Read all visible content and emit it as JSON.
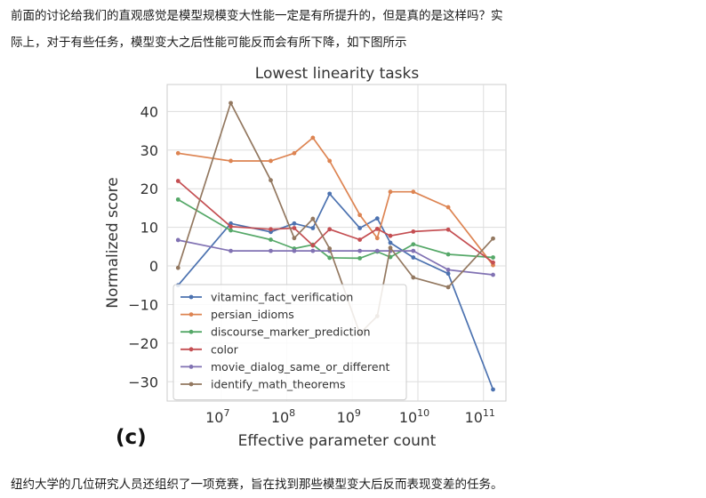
{
  "paragraphs": {
    "intro_line1": "前面的讨论给我们的直观感觉是模型规模变大性能一定是有所提升的，但是真的是这样吗？实",
    "intro_line2": "际上，对于有些任务，模型变大之后性能可能反而会有所下降，如下图所示",
    "after": "纽约大学的几位研究人员还组织了一项竞赛，旨在找到那些模型变大后反而表现变差的任务。"
  },
  "figure": {
    "panel_label": "(c)"
  },
  "chart_data": {
    "type": "line",
    "title": "Lowest linearity tasks",
    "xlabel": "Effective parameter count",
    "ylabel": "Normalized score",
    "xscale": "log",
    "xlim": [
      1500000.0,
      220000000000.0
    ],
    "ylim": [
      -35,
      47
    ],
    "xticks": [
      {
        "value": 10000000.0,
        "base": "10",
        "exp": "7"
      },
      {
        "value": 100000000.0,
        "base": "10",
        "exp": "8"
      },
      {
        "value": 1000000000.0,
        "base": "10",
        "exp": "9"
      },
      {
        "value": 10000000000.0,
        "base": "10",
        "exp": "10"
      },
      {
        "value": 100000000000.0,
        "base": "10",
        "exp": "11"
      }
    ],
    "yticks": [
      40,
      30,
      20,
      10,
      0,
      -10,
      -20,
      -30
    ],
    "ytick_labels": [
      "40",
      "30",
      "20",
      "10",
      "0",
      "−10",
      "−20",
      "−30"
    ],
    "grid": true,
    "legend_position": "lower-left",
    "series": [
      {
        "name": "vitaminc_fact_verification",
        "color": "#4c72b0",
        "points": [
          [
            2200000.0,
            -5
          ],
          [
            14000000.0,
            11
          ],
          [
            57000000.0,
            8.8
          ],
          [
            130000000.0,
            11
          ],
          [
            250000000.0,
            9.8
          ],
          [
            450000000.0,
            18.7
          ],
          [
            1300000000.0,
            9.8
          ],
          [
            2400000000.0,
            12.3
          ],
          [
            3800000000.0,
            6
          ],
          [
            8500000000.0,
            2.2
          ],
          [
            29000000000.0,
            -2
          ],
          [
            140000000000.0,
            -32
          ]
        ]
      },
      {
        "name": "persian_idioms",
        "color": "#dd8452",
        "points": [
          [
            2200000.0,
            29.2
          ],
          [
            14000000.0,
            27.2
          ],
          [
            57000000.0,
            27.2
          ],
          [
            130000000.0,
            29.2
          ],
          [
            250000000.0,
            33.2
          ],
          [
            450000000.0,
            27.2
          ],
          [
            1300000000.0,
            13.2
          ],
          [
            2400000000.0,
            7.2
          ],
          [
            3800000000.0,
            19.2
          ],
          [
            8500000000.0,
            19.2
          ],
          [
            29000000000.0,
            15.2
          ],
          [
            140000000000.0,
            0.2
          ]
        ]
      },
      {
        "name": "discourse_marker_prediction",
        "color": "#55a868",
        "points": [
          [
            2200000.0,
            17.2
          ],
          [
            14000000.0,
            9.2
          ],
          [
            57000000.0,
            6.8
          ],
          [
            130000000.0,
            4.5
          ],
          [
            250000000.0,
            5.5
          ],
          [
            450000000.0,
            2.1
          ],
          [
            1300000000.0,
            2
          ],
          [
            2400000000.0,
            3.7
          ],
          [
            3800000000.0,
            2.3
          ],
          [
            8500000000.0,
            5.6
          ],
          [
            29000000000.0,
            3
          ],
          [
            140000000000.0,
            2.2
          ]
        ]
      },
      {
        "name": "color",
        "color": "#c44e52",
        "points": [
          [
            2200000.0,
            22
          ],
          [
            14000000.0,
            10.2
          ],
          [
            57000000.0,
            9.5
          ],
          [
            130000000.0,
            9.8
          ],
          [
            250000000.0,
            5.3
          ],
          [
            450000000.0,
            9.5
          ],
          [
            1300000000.0,
            6.8
          ],
          [
            2400000000.0,
            9.6
          ],
          [
            3800000000.0,
            7.8
          ],
          [
            8500000000.0,
            8.9
          ],
          [
            29000000000.0,
            9.4
          ],
          [
            140000000000.0,
            0.9
          ]
        ]
      },
      {
        "name": "movie_dialog_same_or_different",
        "color": "#8172b3",
        "points": [
          [
            2200000.0,
            6.7
          ],
          [
            14000000.0,
            3.9
          ],
          [
            57000000.0,
            3.9
          ],
          [
            130000000.0,
            3.9
          ],
          [
            250000000.0,
            3.9
          ],
          [
            450000000.0,
            3.9
          ],
          [
            1300000000.0,
            3.9
          ],
          [
            2400000000.0,
            3.9
          ],
          [
            3800000000.0,
            3.9
          ],
          [
            8500000000.0,
            3.9
          ],
          [
            29000000000.0,
            -1
          ],
          [
            140000000000.0,
            -2.3
          ]
        ]
      },
      {
        "name": "identify_math_theorems",
        "color": "#937860",
        "points": [
          [
            2200000.0,
            -0.5
          ],
          [
            14000000.0,
            42.2
          ],
          [
            57000000.0,
            22.2
          ],
          [
            130000000.0,
            7.2
          ],
          [
            250000000.0,
            12.2
          ],
          [
            450000000.0,
            4.5
          ],
          [
            1300000000.0,
            -17.5
          ],
          [
            2400000000.0,
            -13
          ],
          [
            3800000000.0,
            4.7
          ],
          [
            8500000000.0,
            -3
          ],
          [
            29000000000.0,
            -5.5
          ],
          [
            140000000000.0,
            7.1
          ]
        ]
      }
    ]
  }
}
